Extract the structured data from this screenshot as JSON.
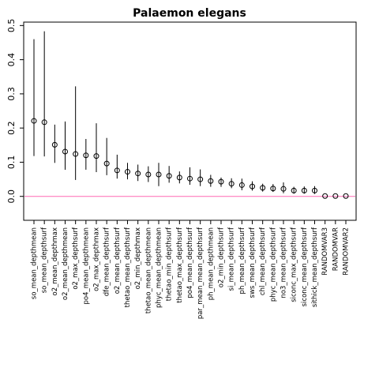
{
  "chart_data": {
    "type": "scatter",
    "title": "Palaemon elegans",
    "xlabel": "",
    "ylabel": "",
    "ylim": [
      -0.07,
      0.51
    ],
    "yticks": [
      "0.0",
      "0.1",
      "0.2",
      "0.3",
      "0.4",
      "0.5"
    ],
    "yticks_values": [
      0.0,
      0.1,
      0.2,
      0.3,
      0.4,
      0.5
    ],
    "reference_line": {
      "y": 0.0,
      "color": "#ff69b4"
    },
    "categories": [
      "so_mean_depthmean",
      "so_mean_depthsurf",
      "o2_mean_depthmax",
      "o2_mean_depthmean",
      "o2_max_depthsurf",
      "po4_mean_depthmean",
      "o2_max_depthmax",
      "dfe_mean_depthsurf",
      "o2_mean_depthsurf",
      "thetao_mean_depthsurf",
      "o2_min_depthmax",
      "thetao_mean_depthmean",
      "phyc_mean_depthmean",
      "thetao_min_depthsurf",
      "thetao_max_depthsurf",
      "po4_mean_depthsurf",
      "par_mean_mean_depthsurf",
      "ph_mean_depthmean",
      "o2_min_depthsurf",
      "si_mean_depthsurf",
      "ph_mean_depthsurf",
      "sws_mean_depthsurf",
      "chl_mean_depthsurf",
      "phyc_mean_depthsurf",
      "no3_mean_depthsurf",
      "siconc_max_depthsurf",
      "siconc_mean_depthsurf",
      "sithick_mean_depthsurf",
      "RANDOMVAR3",
      "RANDOMVAR",
      "RANDOMVAR2"
    ],
    "values": [
      0.221,
      0.217,
      0.151,
      0.131,
      0.124,
      0.12,
      0.118,
      0.096,
      0.076,
      0.072,
      0.067,
      0.064,
      0.064,
      0.06,
      0.055,
      0.052,
      0.05,
      0.045,
      0.043,
      0.037,
      0.033,
      0.029,
      0.025,
      0.023,
      0.022,
      0.017,
      0.017,
      0.017,
      0.001,
      0.001,
      0.001
    ],
    "lower": [
      0.118,
      0.117,
      0.098,
      0.078,
      0.048,
      0.078,
      0.071,
      0.062,
      0.052,
      0.05,
      0.045,
      0.042,
      0.03,
      0.04,
      0.038,
      0.034,
      0.03,
      0.028,
      0.028,
      0.024,
      0.018,
      0.017,
      0.014,
      0.013,
      0.009,
      0.008,
      0.008,
      0.007,
      0.001,
      0.001,
      0.001
    ],
    "upper": [
      0.46,
      0.483,
      0.21,
      0.219,
      0.322,
      0.168,
      0.214,
      0.171,
      0.122,
      0.098,
      0.093,
      0.088,
      0.098,
      0.089,
      0.073,
      0.085,
      0.079,
      0.063,
      0.055,
      0.053,
      0.052,
      0.044,
      0.037,
      0.036,
      0.041,
      0.028,
      0.029,
      0.03,
      0.001,
      0.001,
      0.001
    ]
  }
}
